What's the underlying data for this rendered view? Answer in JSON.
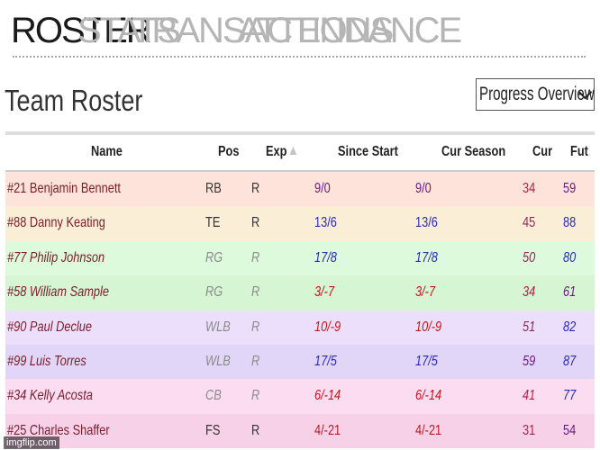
{
  "nav": {
    "tabs": [
      {
        "label": "ROSTER",
        "active": true
      },
      {
        "label": "STATS",
        "active": false
      },
      {
        "label": "TRANSACTIONS",
        "active": false
      },
      {
        "label": "ATTENDANCE",
        "active": false
      }
    ]
  },
  "page": {
    "title": "Team Roster",
    "view_select": "Progress Overview"
  },
  "table": {
    "headers": {
      "name": "Name",
      "pos": "Pos",
      "exp": "Exp",
      "since_start": "Since Start",
      "cur_season": "Cur Season",
      "cur": "Cur",
      "fut": "Fut"
    },
    "rows": [
      {
        "name": "#21 Benjamin Bennett",
        "pos": "RB",
        "exp": "R",
        "since_start": "9/0",
        "cur_season": "9/0",
        "cur": "34",
        "fut": "59",
        "bg": "#fde3d9",
        "since_color": "#6a1a7a",
        "season_color": "#6a1a7a",
        "cur_color": "#b0204a",
        "fut_color": "#6a1a7a",
        "italic": false
      },
      {
        "name": "#88 Danny Keating",
        "pos": "TE",
        "exp": "R",
        "since_start": "13/6",
        "cur_season": "13/6",
        "cur": "45",
        "fut": "88",
        "bg": "#fbeed7",
        "since_color": "#2a2ab8",
        "season_color": "#2a2ab8",
        "cur_color": "#8a2a5a",
        "fut_color": "#2a2ab8",
        "italic": false
      },
      {
        "name": "#77 Philip Johnson",
        "pos": "RG",
        "exp": "R",
        "since_start": "17/8",
        "cur_season": "17/8",
        "cur": "50",
        "fut": "80",
        "bg": "#ddfbdc",
        "since_color": "#2a2ab8",
        "season_color": "#2a2ab8",
        "cur_color": "#8a2a5a",
        "fut_color": "#2a2ab8",
        "italic": true
      },
      {
        "name": "#58 William Sample",
        "pos": "RG",
        "exp": "R",
        "since_start": "3/-7",
        "cur_season": "3/-7",
        "cur": "34",
        "fut": "61",
        "bg": "#d6f5d3",
        "since_color": "#c01818",
        "season_color": "#c01818",
        "cur_color": "#b0204a",
        "fut_color": "#6a1a7a",
        "italic": true
      },
      {
        "name": "#90 Paul Declue",
        "pos": "WLB",
        "exp": "R",
        "since_start": "10/-9",
        "cur_season": "10/-9",
        "cur": "51",
        "fut": "82",
        "bg": "#ecdffc",
        "since_color": "#c01818",
        "season_color": "#c01818",
        "cur_color": "#8a2a5a",
        "fut_color": "#2a2ab8",
        "italic": true
      },
      {
        "name": "#99 Luis Torres",
        "pos": "WLB",
        "exp": "R",
        "since_start": "17/5",
        "cur_season": "17/5",
        "cur": "59",
        "fut": "87",
        "bg": "#e1d6f8",
        "since_color": "#2a2ab8",
        "season_color": "#2a2ab8",
        "cur_color": "#6a1a7a",
        "fut_color": "#2a2ab8",
        "italic": true
      },
      {
        "name": "#34 Kelly Acosta",
        "pos": "CB",
        "exp": "R",
        "since_start": "6/-14",
        "cur_season": "6/-14",
        "cur": "41",
        "fut": "77",
        "bg": "#fbdcf1",
        "since_color": "#c01818",
        "season_color": "#c01818",
        "cur_color": "#b0204a",
        "fut_color": "#2a2ab8",
        "italic": true
      },
      {
        "name": "#25 Charles Shaffer",
        "pos": "FS",
        "exp": "R",
        "since_start": "4/-21",
        "cur_season": "4/-21",
        "cur": "31",
        "fut": "54",
        "bg": "#f6d1e8",
        "since_color": "#c01818",
        "season_color": "#c01818",
        "cur_color": "#b0204a",
        "fut_color": "#6a1a7a",
        "italic": false
      }
    ]
  },
  "watermark": "imgflip.com"
}
